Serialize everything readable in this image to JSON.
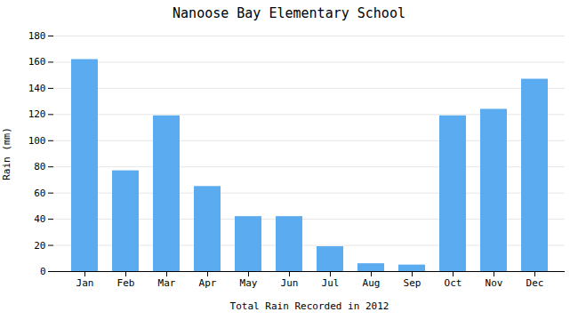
{
  "chart_data": {
    "type": "bar",
    "title": "Nanoose Bay Elementary School",
    "xlabel": "Total Rain Recorded in 2012",
    "ylabel": "Rain (mm)",
    "categories": [
      "Jan",
      "Feb",
      "Mar",
      "Apr",
      "May",
      "Jun",
      "Jul",
      "Aug",
      "Sep",
      "Oct",
      "Nov",
      "Dec"
    ],
    "values": [
      162,
      77,
      119,
      65,
      42,
      42,
      19,
      6,
      5,
      119,
      124,
      147
    ],
    "color": "#5aabef",
    "ylim": [
      0,
      180
    ],
    "yticks": [
      0,
      20,
      40,
      60,
      80,
      100,
      120,
      140,
      160,
      180
    ],
    "grid": true
  }
}
